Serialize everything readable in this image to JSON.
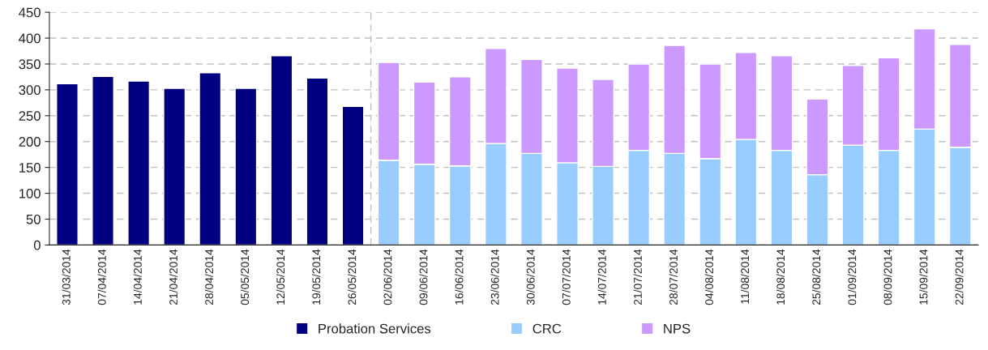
{
  "chart_data": {
    "type": "bar",
    "stacked": true,
    "categories": [
      "31/03/2014",
      "07/04/2014",
      "14/04/2014",
      "21/04/2014",
      "28/04/2014",
      "05/05/2014",
      "12/05/2014",
      "19/05/2014",
      "26/05/2014",
      "02/06/2014",
      "09/06/2014",
      "16/06/2014",
      "23/06/2014",
      "30/06/2014",
      "07/07/2014",
      "14/07/2014",
      "21/07/2014",
      "28/07/2014",
      "04/08/2014",
      "11/08/2014",
      "18/08/2014",
      "25/08/2014",
      "01/09/2014",
      "08/09/2014",
      "15/09/2014",
      "22/09/2014"
    ],
    "series": [
      {
        "name": "Probation Services",
        "color": "#000080",
        "values": [
          312,
          326,
          317,
          303,
          333,
          303,
          366,
          323,
          268,
          null,
          null,
          null,
          null,
          null,
          null,
          null,
          null,
          null,
          null,
          null,
          null,
          null,
          null,
          null,
          null,
          null
        ]
      },
      {
        "name": "CRC",
        "color": "#99ccff",
        "values": [
          null,
          null,
          null,
          null,
          null,
          null,
          null,
          null,
          null,
          164,
          156,
          153,
          196,
          177,
          159,
          152,
          183,
          177,
          167,
          204,
          183,
          136,
          193,
          183,
          224,
          189
        ]
      },
      {
        "name": "NPS",
        "color": "#cc99ff",
        "values": [
          null,
          null,
          null,
          null,
          null,
          null,
          null,
          null,
          null,
          189,
          159,
          172,
          184,
          182,
          183,
          168,
          167,
          209,
          183,
          168,
          183,
          146,
          154,
          179,
          194,
          199
        ]
      }
    ],
    "ylim": [
      0,
      450
    ],
    "yticks": [
      0,
      50,
      100,
      150,
      200,
      250,
      300,
      350,
      400,
      450
    ],
    "grid": "y",
    "legend": "bottom"
  }
}
